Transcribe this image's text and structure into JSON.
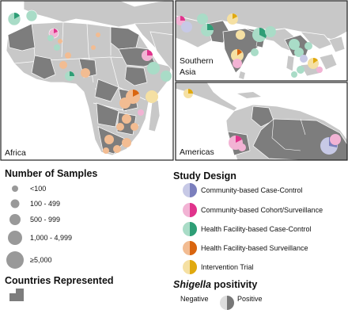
{
  "regions": {
    "africa": "Africa",
    "southern_asia": [
      "Southern",
      "Asia"
    ],
    "americas": "Americas"
  },
  "legend_samples": {
    "title": "Number of Samples",
    "items": [
      "<100",
      "100 - 499",
      "500 - 999",
      "1,000 - 4,999",
      "≥5,000"
    ]
  },
  "legend_design": {
    "title": "Study Design",
    "items": [
      {
        "label": "Community-based Case-Control",
        "color": "#7b7fbd",
        "light": "#c7c9e6"
      },
      {
        "label": "Community-based Cohort/Surveillance",
        "color": "#e0338c",
        "light": "#f2b3d4"
      },
      {
        "label": "Health Facility-based Case-Control",
        "color": "#2e9e76",
        "light": "#a9dcc7"
      },
      {
        "label": "Health Facility-based Surveillance",
        "color": "#d9650f",
        "light": "#f2bc92"
      },
      {
        "label": "Intervention Trial",
        "color": "#e0a90f",
        "light": "#f5e0a3"
      }
    ]
  },
  "countries_represented": {
    "title": "Countries Represented"
  },
  "positivity": {
    "title_italic": "Shigella",
    "title_rest": " positivity",
    "negative": "Negative",
    "positive": "Positive"
  },
  "colors": {
    "land": "#c8c8c8",
    "represented": "#7d7d7d",
    "ocean": "#ffffff",
    "border": "#ffffff",
    "frame": "#222222"
  }
}
